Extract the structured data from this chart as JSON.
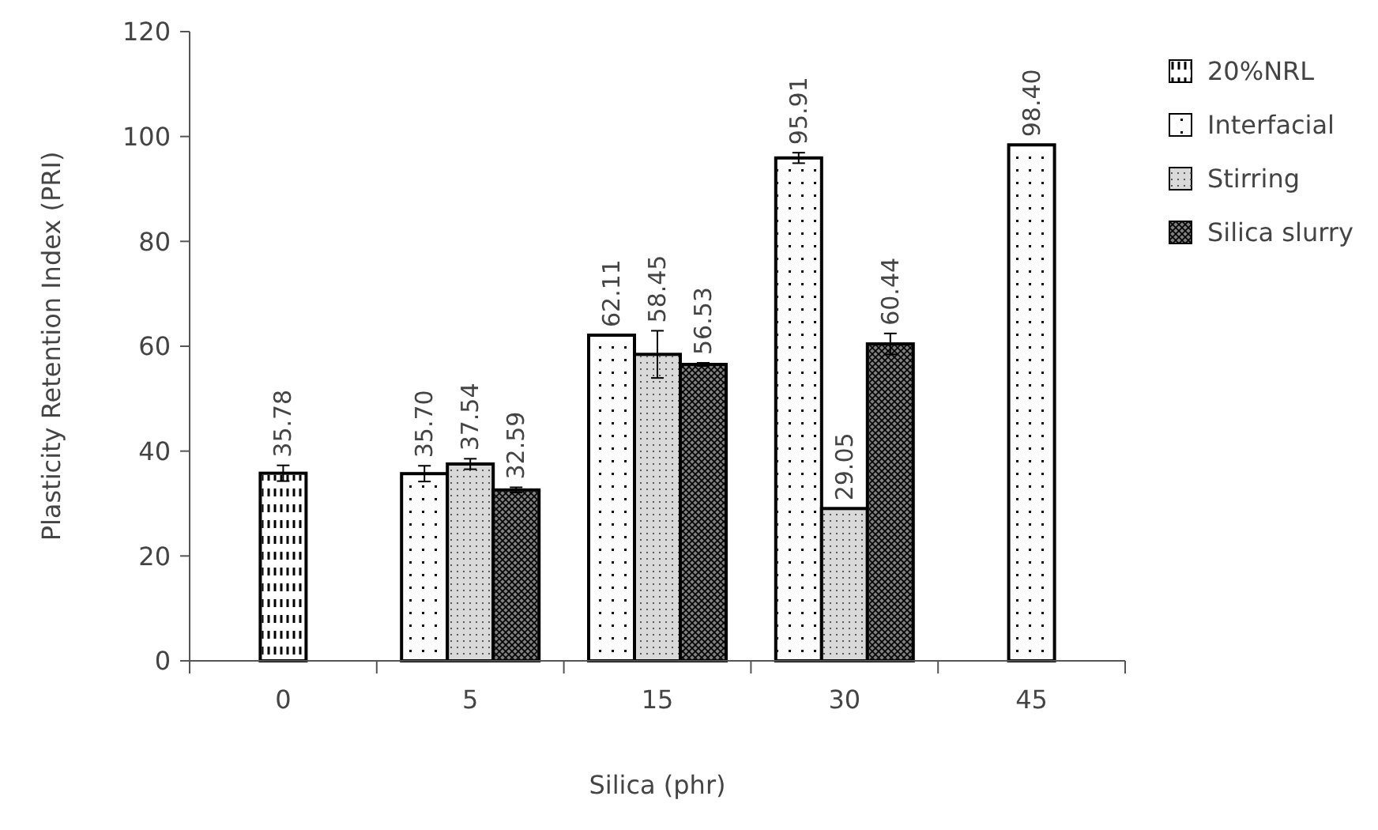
{
  "chart_data": {
    "type": "bar",
    "xlabel": "Silica (phr)",
    "ylabel": "Plasticity Retention Index (PRI)",
    "categories": [
      "0",
      "5",
      "15",
      "30",
      "45"
    ],
    "ylim": [
      0,
      120
    ],
    "yticks": [
      0,
      20,
      40,
      60,
      80,
      100,
      120
    ],
    "grid": false,
    "legend": "right",
    "series": [
      {
        "name": "20%NRL",
        "color": "#ffffff",
        "values": [
          35.78,
          null,
          null,
          null,
          null
        ],
        "errors": [
          1.5,
          null,
          null,
          null,
          null
        ],
        "value_labels": [
          "35.78",
          null,
          null,
          null,
          null
        ]
      },
      {
        "name": "Interfacial",
        "color": "#ffffff",
        "values": [
          null,
          35.7,
          62.11,
          95.91,
          98.4
        ],
        "errors": [
          null,
          1.5,
          null,
          1,
          null
        ],
        "value_labels": [
          null,
          "35.70",
          "62.11",
          "95.91",
          "98.40"
        ]
      },
      {
        "name": "Stirring",
        "color": "#d9d9d9",
        "values": [
          null,
          37.54,
          58.45,
          29.05,
          null
        ],
        "errors": [
          null,
          1,
          4.5,
          null,
          null
        ],
        "value_labels": [
          null,
          "37.54",
          "58.45",
          "29.05",
          null
        ]
      },
      {
        "name": "Silica slurry",
        "color": "#7f7f7f",
        "values": [
          null,
          32.59,
          56.53,
          60.44,
          null
        ],
        "errors": [
          null,
          0.5,
          0.3,
          2,
          null
        ],
        "value_labels": [
          null,
          "32.59",
          "56.53",
          "60.44",
          null
        ]
      }
    ]
  }
}
